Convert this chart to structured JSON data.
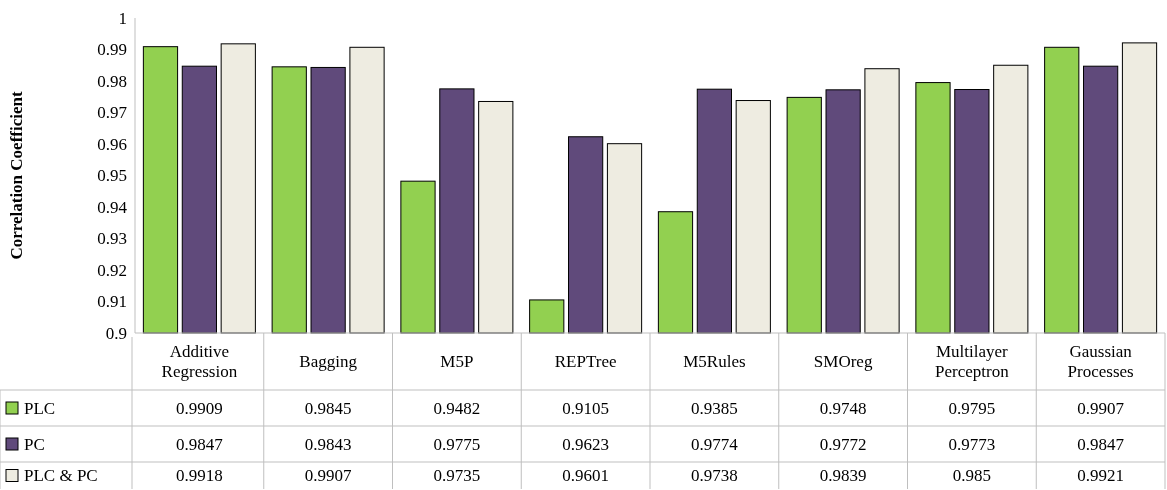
{
  "chart_data": {
    "type": "bar",
    "ylabel": "Correlation Coefficient",
    "categories": [
      "Additive Regression",
      "Bagging",
      "M5P",
      "REPTree",
      "M5Rules",
      "SMOreg",
      "Multilayer Perceptron",
      "Gaussian Processes"
    ],
    "series": [
      {
        "name": "PLC",
        "color": "#92d050",
        "values": [
          0.9909,
          0.9845,
          0.9482,
          0.9105,
          0.9385,
          0.9748,
          0.9795,
          0.9907
        ]
      },
      {
        "name": "PC",
        "color": "#604a7b",
        "values": [
          0.9847,
          0.9843,
          0.9775,
          0.9623,
          0.9774,
          0.9772,
          0.9773,
          0.9847
        ]
      },
      {
        "name": "PLC & PC",
        "color": "#eeece1",
        "values": [
          0.9918,
          0.9907,
          0.9735,
          0.9601,
          0.9738,
          0.9839,
          0.985,
          0.9921
        ]
      }
    ],
    "ylim": [
      0.9,
      1
    ],
    "yticks": [
      0.9,
      0.91,
      0.92,
      0.93,
      0.94,
      0.95,
      0.96,
      0.97,
      0.98,
      0.99,
      1
    ],
    "grid": false,
    "legend": "bottom",
    "data_labels": true
  }
}
